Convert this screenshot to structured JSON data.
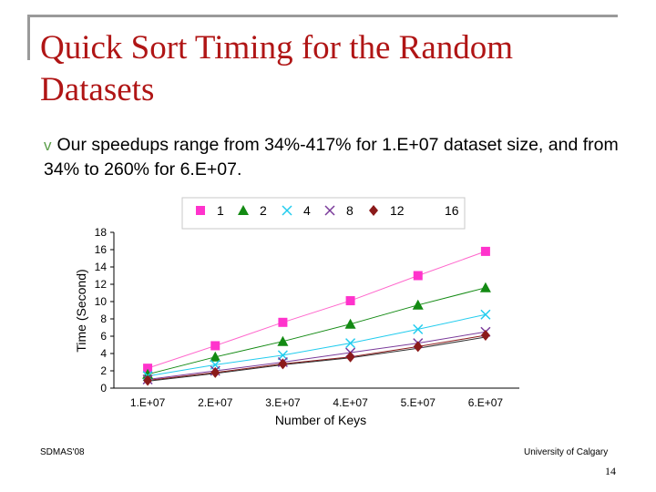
{
  "slide": {
    "title": "Quick Sort Timing for the Random Datasets",
    "bullet_marker": "v",
    "bullet_text": "Our speedups range from 34%-417% for 1.E+07 dataset size, and from 34% to 260% for 6.E+07.",
    "footer_left": "SDMAS'08",
    "footer_right": "University of Calgary",
    "page_number": "14"
  },
  "chart_data": {
    "type": "line",
    "xlabel": "Number of Keys",
    "ylabel": "Time (Second)",
    "categories": [
      "1.E+07",
      "2.E+07",
      "3.E+07",
      "4.E+07",
      "5.E+07",
      "6.E+07"
    ],
    "ylim": [
      0,
      18
    ],
    "yticks": [
      0,
      2,
      4,
      6,
      8,
      10,
      12,
      14,
      16,
      18
    ],
    "grid": false,
    "legend_position": "top",
    "series": [
      {
        "name": "1",
        "marker": "square",
        "color": "#ff33cc",
        "line_color": "#ff66cc",
        "values": [
          2.3,
          4.9,
          7.6,
          10.1,
          13.0,
          15.8
        ]
      },
      {
        "name": "2",
        "marker": "triangle",
        "color": "#138a13",
        "line_color": "#138a13",
        "values": [
          1.6,
          3.6,
          5.4,
          7.4,
          9.6,
          11.6
        ]
      },
      {
        "name": "4",
        "marker": "x",
        "color": "#22ccee",
        "line_color": "#22ccee",
        "values": [
          1.4,
          2.7,
          3.8,
          5.2,
          6.8,
          8.5
        ]
      },
      {
        "name": "8",
        "marker": "x",
        "color": "#7a3a9a",
        "line_color": "#7a3a9a",
        "values": [
          1.0,
          2.0,
          3.0,
          4.1,
          5.2,
          6.5
        ]
      },
      {
        "name": "12",
        "marker": "diamond",
        "color": "#8b1a1a",
        "line_color": "#8b1a1a",
        "values": [
          0.9,
          1.8,
          2.8,
          3.6,
          4.8,
          6.1
        ]
      },
      {
        "name": "16",
        "marker": "none",
        "color": "#333333",
        "line_color": "#333333",
        "values": [
          0.8,
          1.7,
          2.7,
          3.5,
          4.6,
          5.9
        ]
      }
    ]
  }
}
